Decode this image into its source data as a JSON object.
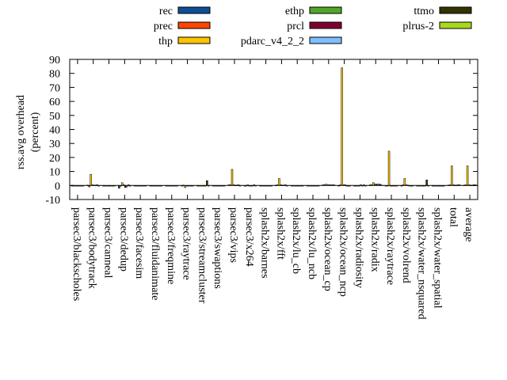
{
  "chart_data": {
    "type": "bar",
    "title": "",
    "xlabel": "",
    "ylabel": [
      "rss.avg overhead",
      "(percent)"
    ],
    "ylim": [
      -10,
      90
    ],
    "yticks": [
      -10,
      0,
      10,
      20,
      30,
      40,
      50,
      60,
      70,
      80,
      90
    ],
    "grid": false,
    "legend_placement": "top (outside, 3 columns)",
    "categories": [
      "parsec3/blackscholes",
      "parsec3/bodytrack",
      "parsec3/canneal",
      "parsec3/dedup",
      "parsec3/facesim",
      "parsec3/fluidanimate",
      "parsec3/freqmine",
      "parsec3/raytrace",
      "parsec3/streamcluster",
      "parsec3/swaptions",
      "parsec3/vips",
      "parsec3/x264",
      "splash2x/barnes",
      "splash2x/fft",
      "splash2x/lu_cb",
      "splash2x/lu_ncb",
      "splash2x/ocean_cp",
      "splash2x/ocean_ncp",
      "splash2x/radiosity",
      "splash2x/radix",
      "splash2x/raytrace",
      "splash2x/volrend",
      "splash2x/water_nsquared",
      "splash2x/water_spatial",
      "total",
      "average"
    ],
    "series": [
      {
        "name": "rec",
        "color": "#0b4f97",
        "values": [
          0,
          0.3,
          0,
          -2,
          0,
          0,
          0,
          0,
          0,
          0,
          0.5,
          0,
          0,
          0.3,
          0,
          0,
          0.5,
          0,
          0,
          0.5,
          0,
          0,
          0,
          -0.5,
          0.3,
          0.3
        ]
      },
      {
        "name": "prec",
        "color": "#ff4500",
        "values": [
          0,
          -1,
          0,
          -0.5,
          0,
          0,
          0,
          0.3,
          0,
          0,
          0.5,
          0,
          0,
          0.5,
          0,
          0,
          0.5,
          0.5,
          0,
          0.5,
          0,
          0.5,
          0,
          0,
          0.5,
          0.5
        ]
      },
      {
        "name": "thp",
        "color": "#ffc400",
        "values": [
          0,
          8,
          0,
          2,
          0,
          0,
          0,
          -1.5,
          0,
          -0.5,
          11.5,
          0.5,
          0,
          5,
          0,
          0,
          1,
          84,
          0,
          2,
          24.5,
          5,
          0,
          -0.5,
          14,
          14
        ]
      },
      {
        "name": "ethp",
        "color": "#52a62a",
        "values": [
          0,
          0.5,
          0,
          0.5,
          0,
          0,
          0,
          0,
          0,
          0,
          0.5,
          0,
          0,
          0.5,
          0,
          0,
          0.5,
          0.5,
          0,
          1,
          0,
          0.5,
          0,
          0,
          0.5,
          0.5
        ]
      },
      {
        "name": "prcl",
        "color": "#7f0030",
        "values": [
          0,
          0.3,
          0,
          -1.5,
          0,
          0,
          0,
          0,
          0,
          0,
          0.3,
          0,
          0,
          0.3,
          0,
          0,
          0.5,
          0.5,
          0.5,
          1,
          0,
          0.3,
          0,
          -0.5,
          0.3,
          0.3
        ]
      },
      {
        "name": "pdarc_v4_2_2",
        "color": "#7fbfff",
        "values": [
          0,
          0.3,
          0,
          -1,
          0,
          0,
          0,
          0,
          0,
          0,
          0.3,
          0,
          0,
          0.3,
          0,
          0,
          0.5,
          0,
          0,
          1,
          0,
          0,
          0,
          -0.5,
          0.3,
          0.3
        ]
      },
      {
        "name": "ttmo",
        "color": "#333300",
        "values": [
          0,
          0.5,
          0,
          0.5,
          0,
          0,
          0,
          0,
          3.5,
          0,
          0.5,
          0.5,
          0,
          0.5,
          0,
          0,
          0.5,
          0,
          0.5,
          1,
          0,
          0,
          4,
          -0.5,
          0.5,
          0.5
        ]
      },
      {
        "name": "plrus-2",
        "color": "#a8d81c",
        "values": [
          0,
          0,
          0,
          -0.5,
          0,
          0,
          0,
          0,
          0,
          0,
          0,
          0,
          0,
          0,
          0,
          0,
          0.5,
          -0.5,
          0,
          0.5,
          0,
          0,
          0,
          0,
          0.5,
          0.5
        ]
      }
    ]
  }
}
